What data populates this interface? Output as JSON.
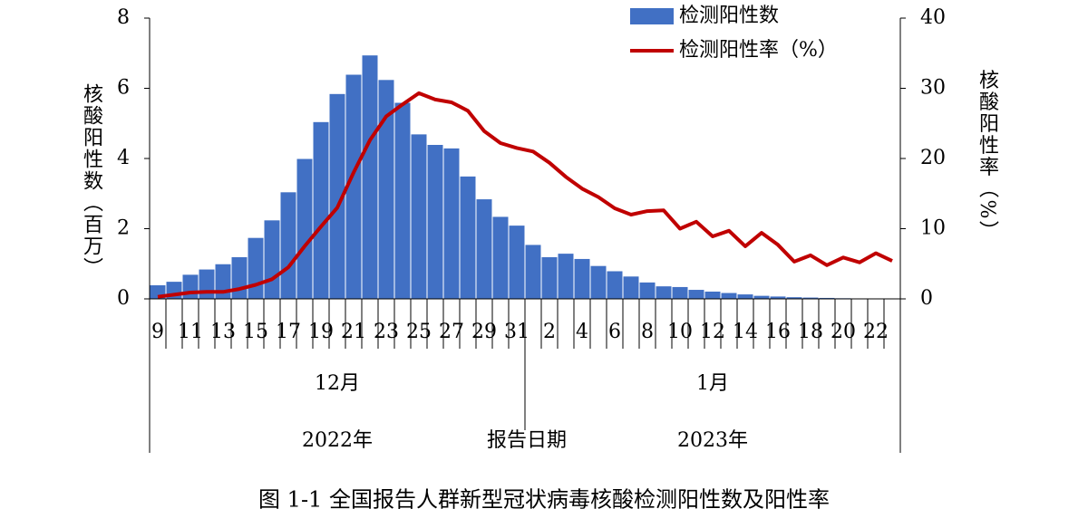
{
  "chart_data": {
    "type": "combo",
    "caption": "图 1-1  全国报告人群新型冠状病毒核酸检测阳性数及阳性率",
    "x_label": "报告日期",
    "y_label": "核酸阳性数（百万）",
    "y2_label": "核酸阳性率（%）",
    "groups": [
      {
        "label": "12月",
        "year": "2022年"
      },
      {
        "label": "1月",
        "year": "2023年"
      }
    ],
    "categories": [
      "9",
      null,
      "11",
      null,
      "13",
      null,
      "15",
      null,
      "17",
      null,
      "19",
      null,
      "21",
      null,
      "23",
      null,
      "25",
      null,
      "27",
      null,
      "29",
      null,
      "31",
      null,
      "2",
      null,
      "4",
      null,
      "6",
      null,
      "8",
      null,
      "10",
      null,
      "12",
      null,
      "14",
      null,
      "16",
      null,
      "18",
      null,
      "20",
      null,
      "22",
      null
    ],
    "series": [
      {
        "name": "检测阳性数",
        "type": "bar",
        "color": "#4170c4",
        "values": [
          0.4,
          0.5,
          0.7,
          0.85,
          1.0,
          1.2,
          1.75,
          2.25,
          3.05,
          4.0,
          5.05,
          5.85,
          6.4,
          6.95,
          6.25,
          5.6,
          4.7,
          4.4,
          4.3,
          3.5,
          2.85,
          2.35,
          2.1,
          1.55,
          1.2,
          1.3,
          1.15,
          0.95,
          0.8,
          0.65,
          0.48,
          0.37,
          0.35,
          0.27,
          0.22,
          0.18,
          0.14,
          0.1,
          0.08,
          0.06,
          0.05,
          0.04,
          0.03,
          0.02,
          0.02,
          0.01
        ]
      },
      {
        "name": "检测阳性率（%）",
        "type": "line",
        "axis": "y2",
        "color": "#c00000",
        "values": [
          0.3,
          0.6,
          0.9,
          1.0,
          1.0,
          1.4,
          2.0,
          2.8,
          4.5,
          7.5,
          10.3,
          13.0,
          18.0,
          22.6,
          26.0,
          27.7,
          29.3,
          28.4,
          28.0,
          26.8,
          23.9,
          22.2,
          21.5,
          21.0,
          19.4,
          17.4,
          15.7,
          14.5,
          12.9,
          12.0,
          12.5,
          12.6,
          10.0,
          11.0,
          8.9,
          9.7,
          7.5,
          9.4,
          7.7,
          5.3,
          6.2,
          4.8,
          5.9,
          5.2,
          6.5,
          5.4
        ]
      }
    ],
    "ylim": [
      0,
      8
    ],
    "yticks": [
      0,
      2,
      4,
      6,
      8
    ],
    "y2lim": [
      0,
      40
    ],
    "y2ticks": [
      0,
      10,
      20,
      30,
      40
    ],
    "legend": "top-right"
  }
}
